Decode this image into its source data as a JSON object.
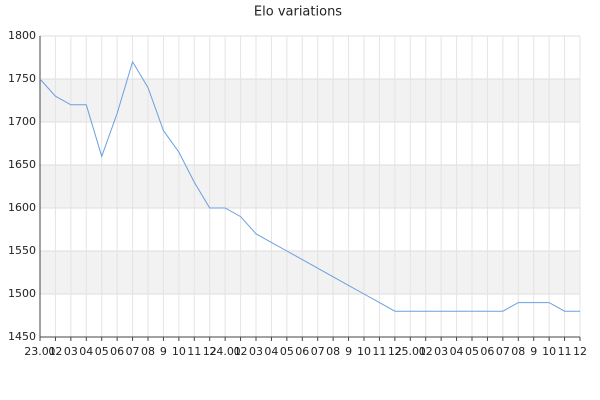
{
  "chart_data": {
    "type": "line",
    "title": "Elo variations",
    "categories": [
      "23.01",
      "02",
      "03",
      "04",
      "05",
      "06",
      "07",
      "08",
      "9",
      "10",
      "11",
      "12",
      "24.01",
      "02",
      "03",
      "04",
      "05",
      "06",
      "07",
      "08",
      "9",
      "10",
      "11",
      "12",
      "25.01",
      "02",
      "03",
      "04",
      "05",
      "06",
      "07",
      "08",
      "9",
      "10",
      "11",
      "12"
    ],
    "values": [
      1750,
      1730,
      1720,
      1720,
      1660,
      1710,
      1770,
      1740,
      1690,
      1665,
      1630,
      1600,
      1600,
      1590,
      1570,
      1560,
      1550,
      1540,
      1530,
      1520,
      1510,
      1500,
      1490,
      1480,
      1480,
      1480,
      1480,
      1480,
      1480,
      1480,
      1480,
      1490,
      1490,
      1490,
      1480,
      1480
    ],
    "color": "#6a9fe0",
    "ylim": [
      1450,
      1800
    ],
    "yticks": [
      1450,
      1500,
      1550,
      1600,
      1650,
      1700,
      1750,
      1800
    ],
    "grid": true,
    "band_color": "#f2f2f2"
  }
}
